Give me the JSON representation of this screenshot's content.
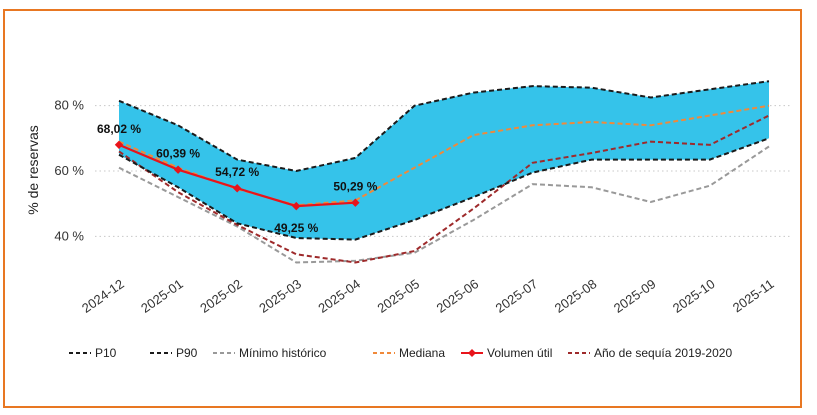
{
  "chart_data": {
    "type": "line",
    "title": "",
    "xlabel": "",
    "ylabel": "% de reservas",
    "ylim": [
      30,
      90
    ],
    "y_ticks": [
      40,
      60,
      80
    ],
    "y_tick_labels": [
      "40 %",
      "60 %",
      "80 %"
    ],
    "grid": "horizontal dotted",
    "legend_position": "bottom",
    "categories": [
      "2024-12",
      "2025-01",
      "2025-02",
      "2025-03",
      "2025-04",
      "2025-05",
      "2025-06",
      "2025-07",
      "2025-08",
      "2025-09",
      "2025-10",
      "2025-11"
    ],
    "series": [
      {
        "name": "P10",
        "style": "dashed",
        "color": "#1a1a1a",
        "values": [
          81.5,
          74,
          63.5,
          60,
          64,
          80,
          84,
          86,
          85.5,
          82.5,
          85,
          87.5
        ]
      },
      {
        "name": "P90",
        "style": "dashed",
        "color": "#1a1a1a",
        "values": [
          65,
          55,
          44,
          39.5,
          39,
          45,
          52,
          59.5,
          63.5,
          63.5,
          63.5,
          70
        ]
      },
      {
        "name": "Mínimo histórico",
        "style": "dashed",
        "color": "#999999",
        "values": [
          61,
          52,
          43,
          32,
          32.5,
          35,
          45,
          56,
          55,
          50.5,
          55.5,
          67.5
        ]
      },
      {
        "name": "Mediana",
        "style": "dashed",
        "color": "#F0893A",
        "values": [
          69,
          61,
          54.5,
          49.5,
          51,
          61,
          71,
          74,
          75,
          74,
          77,
          80
        ]
      },
      {
        "name": "Volumen útil",
        "style": "solid-marker",
        "color": "#E8141B",
        "values": [
          68.02,
          60.39,
          54.72,
          49.25,
          50.29,
          null,
          null,
          null,
          null,
          null,
          null,
          null
        ],
        "data_labels": [
          "68,02 %",
          "60,39 %",
          "54,72 %",
          "49,25 %",
          "50,29 %"
        ]
      },
      {
        "name": "Año de sequía 2019-2020",
        "style": "dashed",
        "color": "#9E2A2B",
        "values": [
          66,
          53.5,
          43.5,
          34.5,
          32,
          35.5,
          48.5,
          62.5,
          65.5,
          69,
          68,
          77
        ]
      }
    ],
    "band": {
      "between": [
        "P90",
        "P10"
      ],
      "color": "#35C3EA"
    }
  }
}
